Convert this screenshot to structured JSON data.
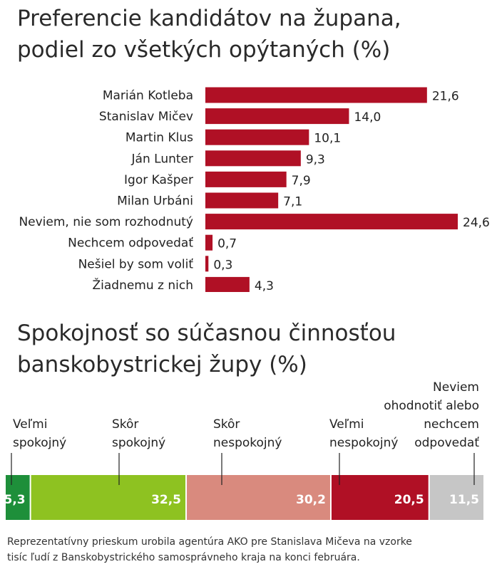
{
  "chart_data": [
    {
      "type": "bar",
      "orientation": "horizontal",
      "title_lines": [
        "Preferencie kandidátov na župana,",
        "podiel zo všetkých opýtaných (%)"
      ],
      "categories": [
        "Marián Kotleba",
        "Stanislav Mičev",
        "Martin Klus",
        "Ján Lunter",
        "Igor Kašper",
        "Milan Urbáni",
        "Neviem, nie som rozhodnutý",
        "Nechcem odpovedať",
        "Nešiel by som voliť",
        "Žiadnemu z nich"
      ],
      "values": [
        21.6,
        14.0,
        10.1,
        9.3,
        7.9,
        7.1,
        24.6,
        0.7,
        0.3,
        4.3
      ],
      "value_labels": [
        "21,6",
        "14,0",
        "10,1",
        "9,3",
        "7,9",
        "7,1",
        "24,6",
        "0,7",
        "0,3",
        "4,3"
      ],
      "xlim": [
        0,
        24.6
      ],
      "bar_color": "#b01025",
      "grid": false
    },
    {
      "type": "stacked-bar",
      "title_lines": [
        "Spokojnosť so súčasnou činnosťou",
        "banskobystrickej župy (%)"
      ],
      "segments": [
        {
          "label_lines": [
            "Veľmi",
            "spokojný"
          ],
          "value": 5.3,
          "value_label": "5,3",
          "color": "#1e8f3a"
        },
        {
          "label_lines": [
            "Skôr",
            "spokojný"
          ],
          "value": 32.5,
          "value_label": "32,5",
          "color": "#8ec221"
        },
        {
          "label_lines": [
            "Skôr",
            "nespokojný"
          ],
          "value": 30.2,
          "value_label": "30,2",
          "color": "#d98a7e"
        },
        {
          "label_lines": [
            "Veľmi",
            "nespokojný"
          ],
          "value": 20.5,
          "value_label": "20,5",
          "color": "#b01025"
        },
        {
          "label_lines": [
            "Neviem",
            "ohodnotiť alebo",
            "nechcem",
            "odpovedať"
          ],
          "value": 11.5,
          "value_label": "11,5",
          "color": "#c6c6c6"
        }
      ]
    }
  ],
  "footnote_lines": [
    "Reprezentatívny prieskum urobila agentúra AKO pre Stanislava Mičeva na vzorke",
    "tisíc ľudí z Banskobystrického samosprávneho kraja na konci februára."
  ]
}
